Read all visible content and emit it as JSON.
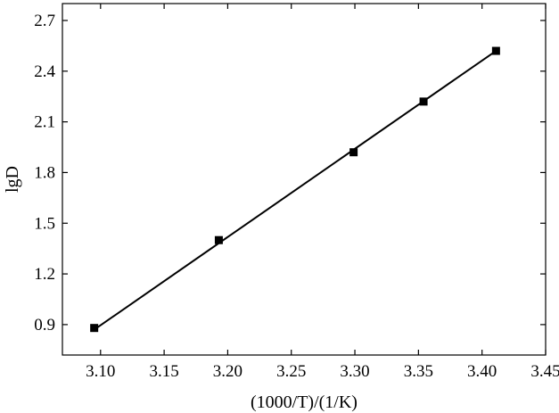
{
  "chart_data": {
    "type": "scatter",
    "xlabel": "(1000/T)/(1/K)",
    "ylabel": "lgD",
    "xlim": [
      3.07,
      3.45
    ],
    "ylim": [
      0.72,
      2.8
    ],
    "x_ticks": [
      3.1,
      3.15,
      3.2,
      3.25,
      3.3,
      3.35,
      3.4,
      3.45
    ],
    "x_tick_labels": [
      "3.10",
      "3.15",
      "3.20",
      "3.25",
      "3.30",
      "3.35",
      "3.40",
      "3.45"
    ],
    "y_ticks": [
      0.9,
      1.2,
      1.5,
      1.8,
      2.1,
      2.4,
      2.7
    ],
    "y_tick_labels": [
      "0.9",
      "1.2",
      "1.5",
      "1.8",
      "2.1",
      "2.4",
      "2.7"
    ],
    "grid": false,
    "series": [
      {
        "points": [
          {
            "x": 3.095,
            "y": 0.88
          },
          {
            "x": 3.193,
            "y": 1.4
          },
          {
            "x": 3.299,
            "y": 1.92
          },
          {
            "x": 3.354,
            "y": 2.22
          },
          {
            "x": 3.411,
            "y": 2.52
          }
        ],
        "marker": "square",
        "color": "#000000"
      }
    ],
    "fit_line": {
      "x": [
        3.095,
        3.411
      ],
      "y": [
        0.87,
        2.52
      ],
      "color": "#000000"
    }
  }
}
